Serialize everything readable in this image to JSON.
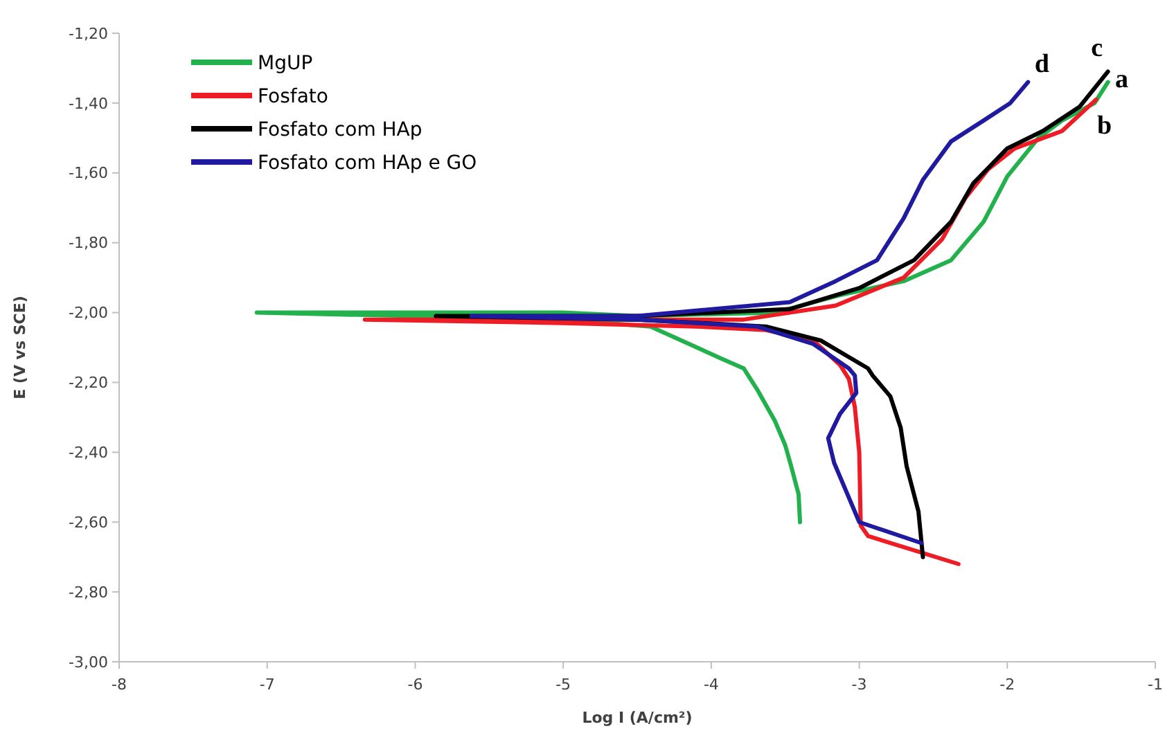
{
  "chart_data": {
    "type": "line",
    "xlabel": "Log I (A/cm²)",
    "ylabel": "E (V vs SCE)",
    "xlim": [
      -8,
      -1
    ],
    "xticks": [
      -8,
      -7,
      -6,
      -5,
      -4,
      -3,
      -2,
      -1
    ],
    "ylim": [
      -3.0,
      -1.2
    ],
    "yticks": [
      {
        "value": -3.0,
        "label": "-3,00"
      },
      {
        "value": -2.8,
        "label": "-2,80"
      },
      {
        "value": -2.6,
        "label": "-2,60"
      },
      {
        "value": -2.4,
        "label": "-2,40"
      },
      {
        "value": -2.2,
        "label": "-2,20"
      },
      {
        "value": -2.0,
        "label": "-2,00"
      },
      {
        "value": -1.8,
        "label": "-1,80"
      },
      {
        "value": -1.6,
        "label": "-1,60"
      },
      {
        "value": -1.4,
        "label": "-1,40"
      },
      {
        "value": -1.2,
        "label": "-1,20"
      }
    ],
    "grid": false,
    "legend": "top left",
    "marker": "none",
    "line_style": "solid",
    "series": [
      {
        "name": "MgUP",
        "color": "#22b14c",
        "x": [
          -3.4,
          -3.41,
          -3.46,
          -3.5,
          -3.57,
          -3.69,
          -3.78,
          -3.94,
          -4.41,
          -5.0,
          -6.0,
          -7.07,
          -6.0,
          -5.0,
          -4.5,
          -3.57,
          -3.13,
          -2.7,
          -2.38,
          -2.16,
          -2.0,
          -1.79,
          -1.63,
          -1.41,
          -1.32
        ],
        "values": [
          -2.6,
          -2.52,
          -2.44,
          -2.38,
          -2.31,
          -2.22,
          -2.16,
          -2.13,
          -2.04,
          -2.02,
          -2.01,
          -2.0,
          -2.0,
          -2.0,
          -2.01,
          -2.0,
          -1.95,
          -1.91,
          -1.85,
          -1.74,
          -1.61,
          -1.5,
          -1.45,
          -1.4,
          -1.34
        ]
      },
      {
        "name": "Fosfato",
        "color": "#ee1c24",
        "x": [
          -2.33,
          -2.94,
          -2.99,
          -3.0,
          -3.03,
          -3.07,
          -3.13,
          -3.31,
          -3.63,
          -4.1,
          -5.0,
          -6.34,
          -5.0,
          -3.78,
          -3.16,
          -2.7,
          -2.44,
          -2.28,
          -2.13,
          -1.95,
          -1.63,
          -1.4
        ],
        "values": [
          -2.72,
          -2.64,
          -2.61,
          -2.4,
          -2.27,
          -2.19,
          -2.15,
          -2.08,
          -2.05,
          -2.04,
          -2.03,
          -2.02,
          -2.02,
          -2.02,
          -1.98,
          -1.9,
          -1.79,
          -1.67,
          -1.59,
          -1.53,
          -1.48,
          -1.39
        ]
      },
      {
        "name": "Fosfato com HAp",
        "color": "#000000",
        "x": [
          -2.57,
          -2.6,
          -2.68,
          -2.72,
          -2.79,
          -2.91,
          -2.94,
          -3.26,
          -3.63,
          -4.5,
          -5.86,
          -4.5,
          -3.47,
          -3.0,
          -2.63,
          -2.38,
          -2.23,
          -2.0,
          -1.76,
          -1.51,
          -1.32
        ],
        "values": [
          -2.7,
          -2.57,
          -2.44,
          -2.33,
          -2.24,
          -2.18,
          -2.16,
          -2.08,
          -2.04,
          -2.02,
          -2.01,
          -2.01,
          -1.99,
          -1.93,
          -1.85,
          -1.74,
          -1.63,
          -1.53,
          -1.48,
          -1.41,
          -1.31
        ]
      },
      {
        "name": "Fosfato com HAp e GO",
        "color": "#1f1aa0",
        "x": [
          -2.58,
          -3.0,
          -3.07,
          -3.17,
          -3.21,
          -3.13,
          -3.02,
          -3.03,
          -3.07,
          -3.31,
          -3.69,
          -4.5,
          -5.62,
          -4.5,
          -3.47,
          -3.16,
          -2.88,
          -2.7,
          -2.57,
          -2.38,
          -2.16,
          -1.98,
          -1.86
        ],
        "values": [
          -2.66,
          -2.6,
          -2.53,
          -2.43,
          -2.36,
          -2.29,
          -2.23,
          -2.18,
          -2.16,
          -2.09,
          -2.04,
          -2.02,
          -2.01,
          -2.01,
          -1.97,
          -1.91,
          -1.85,
          -1.73,
          -1.62,
          -1.51,
          -1.45,
          -1.4,
          -1.34
        ]
      }
    ],
    "annotations": [
      "a",
      "b",
      "c",
      "d"
    ]
  }
}
